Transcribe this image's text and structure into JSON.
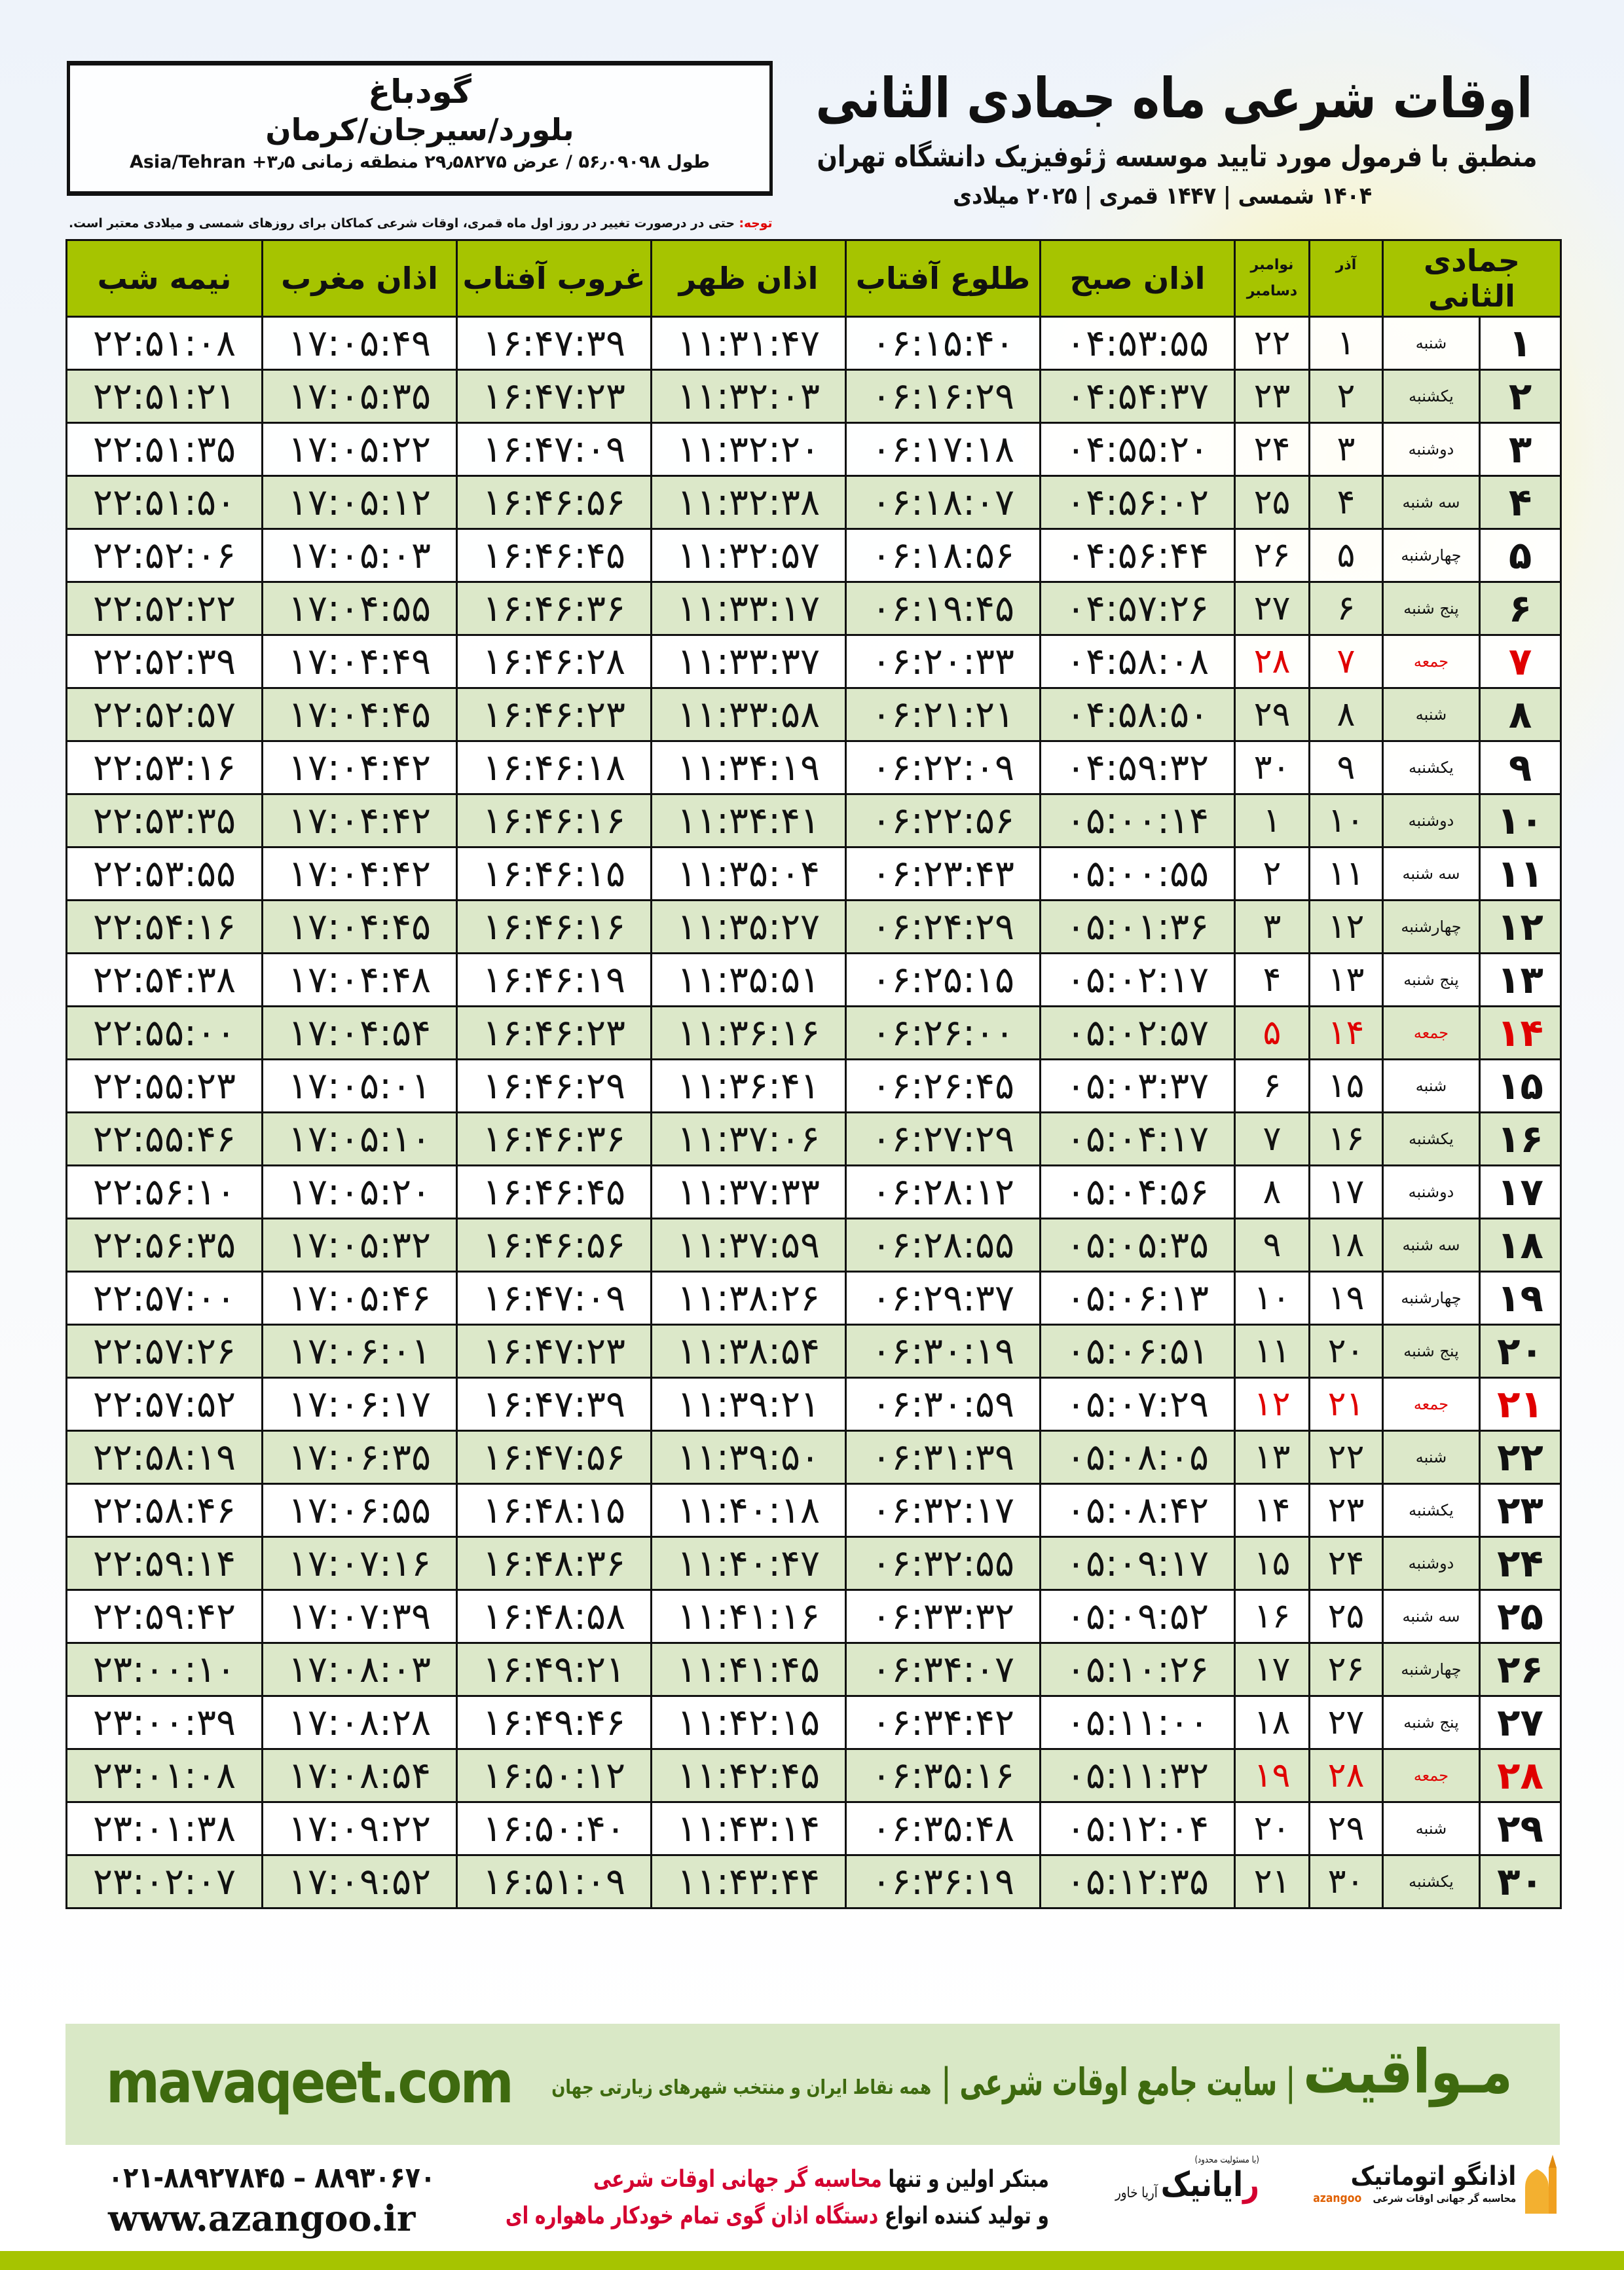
{
  "location": {
    "city": "گودباغ",
    "region": "بلورد/سیرجان/کرمان",
    "coords": "طول ۵۶٫۰۹۰۹۸ / عرض ۲۹٫۵۸۲۷۵ منطقه زمانی ۳٫۵+ Asia/Tehran"
  },
  "header": {
    "title": "اوقات شرعی ماه جمادی الثانی",
    "subtitle": "منطبق با فرمول مورد تایید موسسه ژئوفیزیک دانشگاه تهران",
    "years": "۱۴۰۴ شمسی | ۱۴۴۷ قمری | ۲۰۲۵ میلادی"
  },
  "note": {
    "label": "توجه:",
    "text": " حتی در درصورت تغییر در روز اول ماه قمری، اوقات شرعی کماکان برای روزهای شمسی و میلادی معتبر است."
  },
  "table": {
    "columns": {
      "hijri": "جمادی الثانی",
      "azar": "آذر",
      "greg_top": "نوامبر",
      "greg_bottom": "دسامبر",
      "fajr": "اذان صبح",
      "sunrise": "طلوع آفتاب",
      "dhuhr": "اذان ظهر",
      "sunset": "غروب آفتاب",
      "maghrib": "اذان مغرب",
      "midnight": "نیمه شب"
    },
    "holiday_color": "#e00000",
    "header_color": "#a6c400",
    "alt_row_color": "#dce8c9",
    "rows": [
      {
        "h": "۱",
        "wd": "شنبه",
        "az": "۱",
        "gr": "۲۲",
        "f": "۰۴:۵۳:۵۵",
        "s": "۰۶:۱۵:۴۰",
        "z": "۱۱:۳۱:۴۷",
        "g": "۱۶:۴۷:۳۹",
        "m": "۱۷:۰۵:۴۹",
        "n": "۲۲:۵۱:۰۸",
        "holiday": false
      },
      {
        "h": "۲",
        "wd": "یکشنبه",
        "az": "۲",
        "gr": "۲۳",
        "f": "۰۴:۵۴:۳۷",
        "s": "۰۶:۱۶:۲۹",
        "z": "۱۱:۳۲:۰۳",
        "g": "۱۶:۴۷:۲۳",
        "m": "۱۷:۰۵:۳۵",
        "n": "۲۲:۵۱:۲۱",
        "holiday": false
      },
      {
        "h": "۳",
        "wd": "دوشنبه",
        "az": "۳",
        "gr": "۲۴",
        "f": "۰۴:۵۵:۲۰",
        "s": "۰۶:۱۷:۱۸",
        "z": "۱۱:۳۲:۲۰",
        "g": "۱۶:۴۷:۰۹",
        "m": "۱۷:۰۵:۲۲",
        "n": "۲۲:۵۱:۳۵",
        "holiday": false
      },
      {
        "h": "۴",
        "wd": "سه شنبه",
        "az": "۴",
        "gr": "۲۵",
        "f": "۰۴:۵۶:۰۲",
        "s": "۰۶:۱۸:۰۷",
        "z": "۱۱:۳۲:۳۸",
        "g": "۱۶:۴۶:۵۶",
        "m": "۱۷:۰۵:۱۲",
        "n": "۲۲:۵۱:۵۰",
        "holiday": false
      },
      {
        "h": "۵",
        "wd": "چهارشنبه",
        "az": "۵",
        "gr": "۲۶",
        "f": "۰۴:۵۶:۴۴",
        "s": "۰۶:۱۸:۵۶",
        "z": "۱۱:۳۲:۵۷",
        "g": "۱۶:۴۶:۴۵",
        "m": "۱۷:۰۵:۰۳",
        "n": "۲۲:۵۲:۰۶",
        "holiday": false
      },
      {
        "h": "۶",
        "wd": "پنج شنبه",
        "az": "۶",
        "gr": "۲۷",
        "f": "۰۴:۵۷:۲۶",
        "s": "۰۶:۱۹:۴۵",
        "z": "۱۱:۳۳:۱۷",
        "g": "۱۶:۴۶:۳۶",
        "m": "۱۷:۰۴:۵۵",
        "n": "۲۲:۵۲:۲۲",
        "holiday": false
      },
      {
        "h": "۷",
        "wd": "جمعه",
        "az": "۷",
        "gr": "۲۸",
        "f": "۰۴:۵۸:۰۸",
        "s": "۰۶:۲۰:۳۳",
        "z": "۱۱:۳۳:۳۷",
        "g": "۱۶:۴۶:۲۸",
        "m": "۱۷:۰۴:۴۹",
        "n": "۲۲:۵۲:۳۹",
        "holiday": true
      },
      {
        "h": "۸",
        "wd": "شنبه",
        "az": "۸",
        "gr": "۲۹",
        "f": "۰۴:۵۸:۵۰",
        "s": "۰۶:۲۱:۲۱",
        "z": "۱۱:۳۳:۵۸",
        "g": "۱۶:۴۶:۲۳",
        "m": "۱۷:۰۴:۴۵",
        "n": "۲۲:۵۲:۵۷",
        "holiday": false
      },
      {
        "h": "۹",
        "wd": "یکشنبه",
        "az": "۹",
        "gr": "۳۰",
        "f": "۰۴:۵۹:۳۲",
        "s": "۰۶:۲۲:۰۹",
        "z": "۱۱:۳۴:۱۹",
        "g": "۱۶:۴۶:۱۸",
        "m": "۱۷:۰۴:۴۲",
        "n": "۲۲:۵۳:۱۶",
        "holiday": false
      },
      {
        "h": "۱۰",
        "wd": "دوشنبه",
        "az": "۱۰",
        "gr": "۱",
        "f": "۰۵:۰۰:۱۴",
        "s": "۰۶:۲۲:۵۶",
        "z": "۱۱:۳۴:۴۱",
        "g": "۱۶:۴۶:۱۶",
        "m": "۱۷:۰۴:۴۲",
        "n": "۲۲:۵۳:۳۵",
        "holiday": false
      },
      {
        "h": "۱۱",
        "wd": "سه شنبه",
        "az": "۱۱",
        "gr": "۲",
        "f": "۰۵:۰۰:۵۵",
        "s": "۰۶:۲۳:۴۳",
        "z": "۱۱:۳۵:۰۴",
        "g": "۱۶:۴۶:۱۵",
        "m": "۱۷:۰۴:۴۲",
        "n": "۲۲:۵۳:۵۵",
        "holiday": false
      },
      {
        "h": "۱۲",
        "wd": "چهارشنبه",
        "az": "۱۲",
        "gr": "۳",
        "f": "۰۵:۰۱:۳۶",
        "s": "۰۶:۲۴:۲۹",
        "z": "۱۱:۳۵:۲۷",
        "g": "۱۶:۴۶:۱۶",
        "m": "۱۷:۰۴:۴۵",
        "n": "۲۲:۵۴:۱۶",
        "holiday": false
      },
      {
        "h": "۱۳",
        "wd": "پنج شنبه",
        "az": "۱۳",
        "gr": "۴",
        "f": "۰۵:۰۲:۱۷",
        "s": "۰۶:۲۵:۱۵",
        "z": "۱۱:۳۵:۵۱",
        "g": "۱۶:۴۶:۱۹",
        "m": "۱۷:۰۴:۴۸",
        "n": "۲۲:۵۴:۳۸",
        "holiday": false
      },
      {
        "h": "۱۴",
        "wd": "جمعه",
        "az": "۱۴",
        "gr": "۵",
        "f": "۰۵:۰۲:۵۷",
        "s": "۰۶:۲۶:۰۰",
        "z": "۱۱:۳۶:۱۶",
        "g": "۱۶:۴۶:۲۳",
        "m": "۱۷:۰۴:۵۴",
        "n": "۲۲:۵۵:۰۰",
        "holiday": true
      },
      {
        "h": "۱۵",
        "wd": "شنبه",
        "az": "۱۵",
        "gr": "۶",
        "f": "۰۵:۰۳:۳۷",
        "s": "۰۶:۲۶:۴۵",
        "z": "۱۱:۳۶:۴۱",
        "g": "۱۶:۴۶:۲۹",
        "m": "۱۷:۰۵:۰۱",
        "n": "۲۲:۵۵:۲۳",
        "holiday": false
      },
      {
        "h": "۱۶",
        "wd": "یکشنبه",
        "az": "۱۶",
        "gr": "۷",
        "f": "۰۵:۰۴:۱۷",
        "s": "۰۶:۲۷:۲۹",
        "z": "۱۱:۳۷:۰۶",
        "g": "۱۶:۴۶:۳۶",
        "m": "۱۷:۰۵:۱۰",
        "n": "۲۲:۵۵:۴۶",
        "holiday": false
      },
      {
        "h": "۱۷",
        "wd": "دوشنبه",
        "az": "۱۷",
        "gr": "۸",
        "f": "۰۵:۰۴:۵۶",
        "s": "۰۶:۲۸:۱۲",
        "z": "۱۱:۳۷:۳۳",
        "g": "۱۶:۴۶:۴۵",
        "m": "۱۷:۰۵:۲۰",
        "n": "۲۲:۵۶:۱۰",
        "holiday": false
      },
      {
        "h": "۱۸",
        "wd": "سه شنبه",
        "az": "۱۸",
        "gr": "۹",
        "f": "۰۵:۰۵:۳۵",
        "s": "۰۶:۲۸:۵۵",
        "z": "۱۱:۳۷:۵۹",
        "g": "۱۶:۴۶:۵۶",
        "m": "۱۷:۰۵:۳۲",
        "n": "۲۲:۵۶:۳۵",
        "holiday": false
      },
      {
        "h": "۱۹",
        "wd": "چهارشنبه",
        "az": "۱۹",
        "gr": "۱۰",
        "f": "۰۵:۰۶:۱۳",
        "s": "۰۶:۲۹:۳۷",
        "z": "۱۱:۳۸:۲۶",
        "g": "۱۶:۴۷:۰۹",
        "m": "۱۷:۰۵:۴۶",
        "n": "۲۲:۵۷:۰۰",
        "holiday": false
      },
      {
        "h": "۲۰",
        "wd": "پنج شنبه",
        "az": "۲۰",
        "gr": "۱۱",
        "f": "۰۵:۰۶:۵۱",
        "s": "۰۶:۳۰:۱۹",
        "z": "۱۱:۳۸:۵۴",
        "g": "۱۶:۴۷:۲۳",
        "m": "۱۷:۰۶:۰۱",
        "n": "۲۲:۵۷:۲۶",
        "holiday": false
      },
      {
        "h": "۲۱",
        "wd": "جمعه",
        "az": "۲۱",
        "gr": "۱۲",
        "f": "۰۵:۰۷:۲۹",
        "s": "۰۶:۳۰:۵۹",
        "z": "۱۱:۳۹:۲۱",
        "g": "۱۶:۴۷:۳۹",
        "m": "۱۷:۰۶:۱۷",
        "n": "۲۲:۵۷:۵۲",
        "holiday": true
      },
      {
        "h": "۲۲",
        "wd": "شنبه",
        "az": "۲۲",
        "gr": "۱۳",
        "f": "۰۵:۰۸:۰۵",
        "s": "۰۶:۳۱:۳۹",
        "z": "۱۱:۳۹:۵۰",
        "g": "۱۶:۴۷:۵۶",
        "m": "۱۷:۰۶:۳۵",
        "n": "۲۲:۵۸:۱۹",
        "holiday": false
      },
      {
        "h": "۲۳",
        "wd": "یکشنبه",
        "az": "۲۳",
        "gr": "۱۴",
        "f": "۰۵:۰۸:۴۲",
        "s": "۰۶:۳۲:۱۷",
        "z": "۱۱:۴۰:۱۸",
        "g": "۱۶:۴۸:۱۵",
        "m": "۱۷:۰۶:۵۵",
        "n": "۲۲:۵۸:۴۶",
        "holiday": false
      },
      {
        "h": "۲۴",
        "wd": "دوشنبه",
        "az": "۲۴",
        "gr": "۱۵",
        "f": "۰۵:۰۹:۱۷",
        "s": "۰۶:۳۲:۵۵",
        "z": "۱۱:۴۰:۴۷",
        "g": "۱۶:۴۸:۳۶",
        "m": "۱۷:۰۷:۱۶",
        "n": "۲۲:۵۹:۱۴",
        "holiday": false
      },
      {
        "h": "۲۵",
        "wd": "سه شنبه",
        "az": "۲۵",
        "gr": "۱۶",
        "f": "۰۵:۰۹:۵۲",
        "s": "۰۶:۳۳:۳۲",
        "z": "۱۱:۴۱:۱۶",
        "g": "۱۶:۴۸:۵۸",
        "m": "۱۷:۰۷:۳۹",
        "n": "۲۲:۵۹:۴۲",
        "holiday": false
      },
      {
        "h": "۲۶",
        "wd": "چهارشنبه",
        "az": "۲۶",
        "gr": "۱۷",
        "f": "۰۵:۱۰:۲۶",
        "s": "۰۶:۳۴:۰۷",
        "z": "۱۱:۴۱:۴۵",
        "g": "۱۶:۴۹:۲۱",
        "m": "۱۷:۰۸:۰۳",
        "n": "۲۳:۰۰:۱۰",
        "holiday": false
      },
      {
        "h": "۲۷",
        "wd": "پنج شنبه",
        "az": "۲۷",
        "gr": "۱۸",
        "f": "۰۵:۱۱:۰۰",
        "s": "۰۶:۳۴:۴۲",
        "z": "۱۱:۴۲:۱۵",
        "g": "۱۶:۴۹:۴۶",
        "m": "۱۷:۰۸:۲۸",
        "n": "۲۳:۰۰:۳۹",
        "holiday": false
      },
      {
        "h": "۲۸",
        "wd": "جمعه",
        "az": "۲۸",
        "gr": "۱۹",
        "f": "۰۵:۱۱:۳۲",
        "s": "۰۶:۳۵:۱۶",
        "z": "۱۱:۴۲:۴۵",
        "g": "۱۶:۵۰:۱۲",
        "m": "۱۷:۰۸:۵۴",
        "n": "۲۳:۰۱:۰۸",
        "holiday": true
      },
      {
        "h": "۲۹",
        "wd": "شنبه",
        "az": "۲۹",
        "gr": "۲۰",
        "f": "۰۵:۱۲:۰۴",
        "s": "۰۶:۳۵:۴۸",
        "z": "۱۱:۴۳:۱۴",
        "g": "۱۶:۵۰:۴۰",
        "m": "۱۷:۰۹:۲۲",
        "n": "۲۳:۰۱:۳۸",
        "holiday": false
      },
      {
        "h": "۳۰",
        "wd": "یکشنبه",
        "az": "۳۰",
        "gr": "۲۱",
        "f": "۰۵:۱۲:۳۵",
        "s": "۰۶:۳۶:۱۹",
        "z": "۱۱:۴۳:۴۴",
        "g": "۱۶:۵۱:۰۹",
        "m": "۱۷:۰۹:۵۲",
        "n": "۲۳:۰۲:۰۷",
        "holiday": false
      }
    ]
  },
  "footer": {
    "brand": "مـواقیت",
    "brand_sep": "| سایت جامع اوقات شرعی |",
    "tagline": "همه نقاط ایران و منتخب شهرهای زیارتی جهان",
    "site": "mavaqeet.com",
    "brand_color": "#3e6a0f",
    "phone": "۰۲۱-۸۸۹۲۷۸۴۵ – ۸۸۹۳۰۶۷۰",
    "web": "www.azangoo.ir",
    "promo_line1_a": "مبتکر اولین و تنها ",
    "promo_line1_b": "محاسبه گر جهانی اوقات شرعی",
    "promo_line2_a": "و تولید کننده انواع ",
    "promo_line2_b": "دستگاه اذان گوی تمام خودکار ماهواره ای",
    "raianik_small": "(با مسئولیت محدود)",
    "raianik_name_a": "ر",
    "raianik_name_b": "ایانیک",
    "raianik_sub": "آریا خاور",
    "azangoo_name": "اذانگو اتوماتیک",
    "azangoo_desc": "محاسبه گر جهانی اوقات شرعی",
    "azangoo_en": "azangoo"
  }
}
